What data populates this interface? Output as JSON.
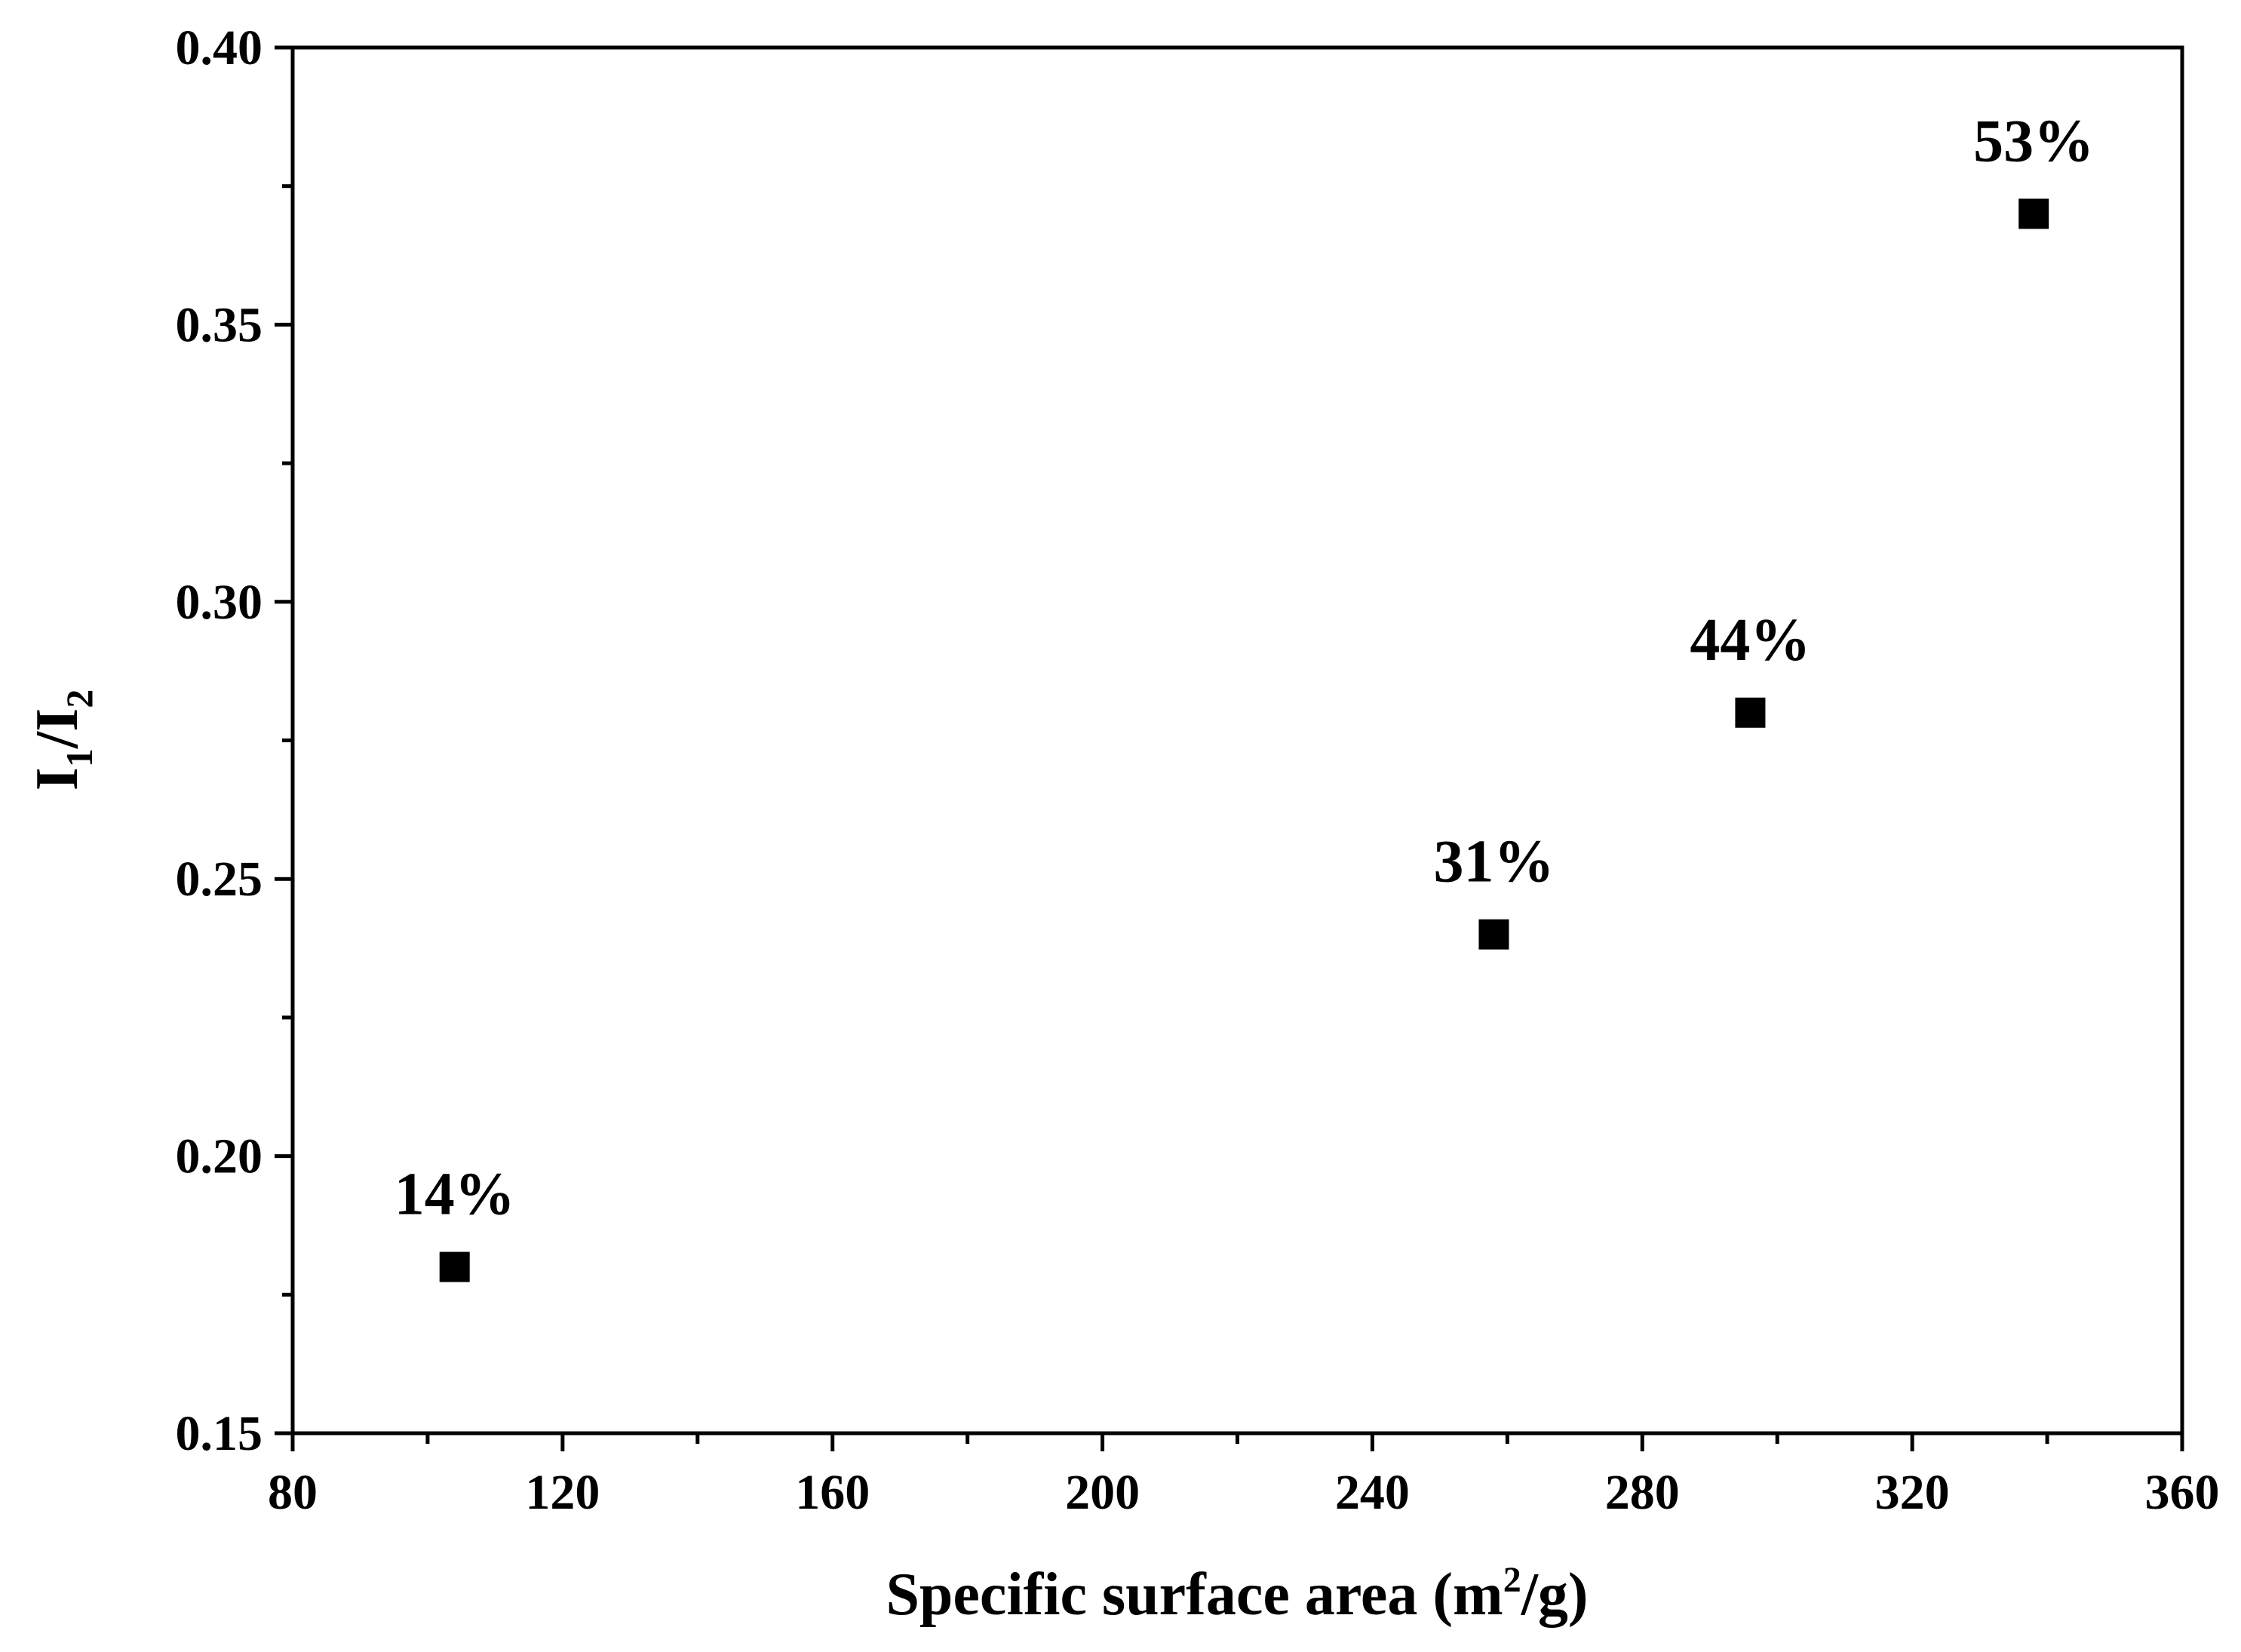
{
  "chart_data": {
    "type": "scatter",
    "title": "",
    "xlabel": {
      "main": "Specific surface area (m",
      "sup": "2",
      "tail": "/g)"
    },
    "ylabel": {
      "part1": "I",
      "sub1": "1",
      "mid": "/I",
      "sub2": "2"
    },
    "xlim": [
      80,
      360
    ],
    "ylim": [
      0.15,
      0.4
    ],
    "x_ticks": [
      80,
      120,
      160,
      200,
      240,
      280,
      320,
      360
    ],
    "x_tick_labels": [
      "80",
      "120",
      "160",
      "200",
      "240",
      "280",
      "320",
      "360"
    ],
    "y_ticks": [
      0.15,
      0.2,
      0.25,
      0.3,
      0.35,
      0.4
    ],
    "y_tick_labels": [
      "0.15",
      "0.20",
      "0.25",
      "0.30",
      "0.35",
      "0.40"
    ],
    "grid": false,
    "marker": "square",
    "color": "#000000",
    "series": [
      {
        "points": [
          {
            "x": 104,
            "y": 0.18,
            "label": "14%"
          },
          {
            "x": 258,
            "y": 0.24,
            "label": "31%"
          },
          {
            "x": 296,
            "y": 0.28,
            "label": "44%"
          },
          {
            "x": 338,
            "y": 0.37,
            "label": "53%"
          }
        ]
      }
    ]
  }
}
